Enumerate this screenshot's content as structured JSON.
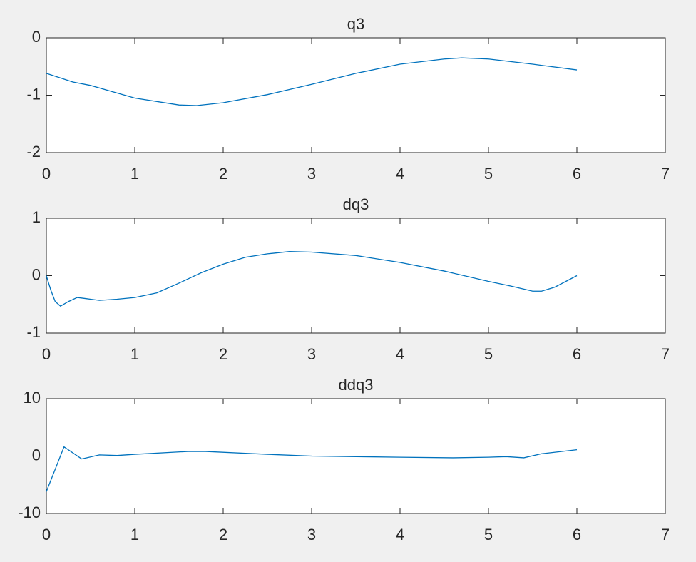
{
  "chart_data": [
    {
      "type": "line",
      "title": "q3",
      "color": "#0072bd",
      "x": [
        0,
        0.3,
        0.5,
        1.0,
        1.5,
        1.7,
        2.0,
        2.5,
        3.0,
        3.5,
        4.0,
        4.5,
        4.7,
        5.0,
        5.5,
        6.0
      ],
      "values": [
        -0.62,
        -0.77,
        -0.83,
        -1.05,
        -1.17,
        -1.18,
        -1.13,
        -0.99,
        -0.81,
        -0.62,
        -0.46,
        -0.37,
        -0.35,
        -0.37,
        -0.46,
        -0.56
      ],
      "xlim": [
        0,
        7
      ],
      "xticks": [
        0,
        1,
        2,
        3,
        4,
        5,
        6,
        7
      ],
      "ylim": [
        -2,
        0
      ],
      "yticks": [
        -2,
        -1,
        0
      ]
    },
    {
      "type": "line",
      "title": "dq3",
      "color": "#0072bd",
      "x": [
        0,
        0.05,
        0.1,
        0.16,
        0.25,
        0.35,
        0.45,
        0.6,
        0.8,
        1.0,
        1.25,
        1.5,
        1.75,
        2.0,
        2.25,
        2.5,
        2.75,
        3.0,
        3.5,
        4.0,
        4.5,
        5.0,
        5.25,
        5.5,
        5.6,
        5.75,
        6.0
      ],
      "values": [
        0,
        -0.25,
        -0.45,
        -0.53,
        -0.45,
        -0.38,
        -0.4,
        -0.43,
        -0.41,
        -0.38,
        -0.3,
        -0.13,
        0.05,
        0.2,
        0.32,
        0.38,
        0.42,
        0.41,
        0.35,
        0.23,
        0.08,
        -0.1,
        -0.18,
        -0.27,
        -0.27,
        -0.2,
        0
      ],
      "xlim": [
        0,
        7
      ],
      "xticks": [
        0,
        1,
        2,
        3,
        4,
        5,
        6,
        7
      ],
      "ylim": [
        -1,
        1
      ],
      "yticks": [
        -1,
        0,
        1
      ]
    },
    {
      "type": "line",
      "title": "ddq3",
      "color": "#0072bd",
      "x": [
        0,
        0.2,
        0.4,
        0.6,
        0.8,
        1.0,
        1.6,
        1.8,
        2.5,
        3.0,
        4.0,
        4.6,
        5.0,
        5.2,
        5.4,
        5.6,
        6.0
      ],
      "values": [
        -6.2,
        1.6,
        -0.5,
        0.2,
        0.1,
        0.3,
        0.8,
        0.8,
        0.3,
        0,
        -0.2,
        -0.3,
        -0.2,
        -0.1,
        -0.3,
        0.4,
        1.1
      ],
      "xlim": [
        0,
        7
      ],
      "xticks": [
        0,
        1,
        2,
        3,
        4,
        5,
        6,
        7
      ],
      "ylim": [
        -10,
        10
      ],
      "yticks": [
        -10,
        0,
        10
      ]
    }
  ]
}
